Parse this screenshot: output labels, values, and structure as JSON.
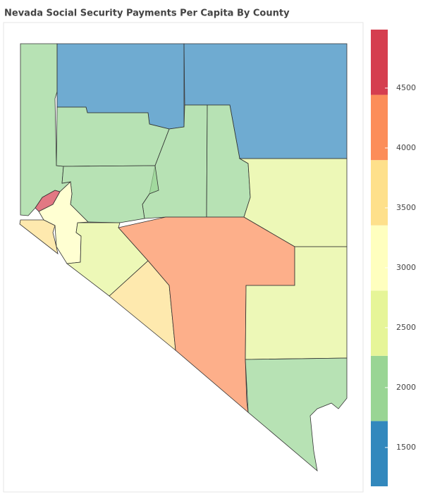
{
  "chart_data": {
    "type": "choropleth",
    "title": "Nevada Social Security Payments Per Capita By County",
    "values": [
      2200,
      1500,
      1500,
      2200,
      2200,
      2200,
      2600,
      2200,
      3100,
      4700,
      3600,
      2600,
      3600,
      4200,
      2600,
      2200
    ],
    "colors": [
      "#3288bd",
      "#99d594",
      "#e6f598",
      "#ffffbf",
      "#fee08b",
      "#fc8d59",
      "#d53e4f"
    ],
    "zlim": [
      1176,
      4988
    ],
    "zticks": [
      1500,
      2000,
      2500,
      3000,
      3500,
      4000,
      4500
    ]
  }
}
